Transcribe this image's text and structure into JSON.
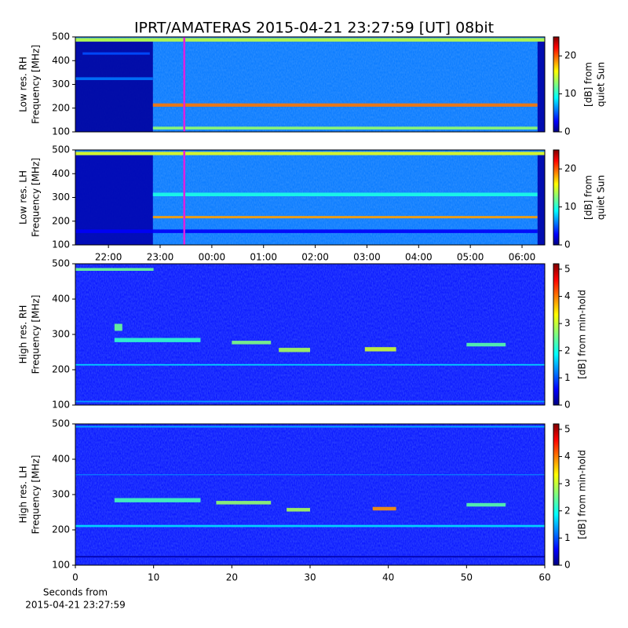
{
  "chart_data": {
    "type": "heatmap",
    "title": "IPRT/AMATERAS 2015-04-21 23:27:59 [UT]   08bit",
    "cursor": {
      "value": 23.4664,
      "color": "#e020e0"
    },
    "panels": [
      {
        "ylabel": [
          "Low res. RH",
          "Frequency [MHz]"
        ],
        "xlim": [
          21.36,
          30.44
        ],
        "ylim": [
          100,
          500
        ],
        "yticks": [
          100,
          200,
          300,
          400,
          500
        ],
        "clim": [
          0,
          25
        ],
        "cticks": [
          0,
          10,
          20
        ],
        "clabel": [
          "[dB] from",
          "quiet Sun"
        ],
        "background": 6,
        "features": [
          {
            "x": [
              21.36,
              22.86
            ],
            "y": [
              100,
              480
            ],
            "value": 0.8
          },
          {
            "x": [
              21.36,
              30.44
            ],
            "y": [
              480,
              495
            ],
            "value": 14
          },
          {
            "x": [
              22.86,
              30.3
            ],
            "y": [
              206,
              220
            ],
            "value": 19
          },
          {
            "x": [
              22.86,
              30.3
            ],
            "y": [
              110,
              122
            ],
            "value": 13
          },
          {
            "x": [
              21.5,
              22.8
            ],
            "y": [
              425,
              435
            ],
            "value": 5
          },
          {
            "x": [
              21.36,
              22.86
            ],
            "y": [
              318,
              330
            ],
            "value": 6
          },
          {
            "x": [
              30.3,
              30.44
            ],
            "y": [
              100,
              480
            ],
            "value": 1
          }
        ]
      },
      {
        "ylabel": [
          "Low res. LH",
          "Frequency [MHz]"
        ],
        "xlim": [
          21.36,
          30.44
        ],
        "ylim": [
          100,
          500
        ],
        "yticks": [
          100,
          200,
          300,
          400,
          500
        ],
        "xticks": [
          {
            "value": 22,
            "label": "22:00"
          },
          {
            "value": 23,
            "label": "23:00"
          },
          {
            "value": 24,
            "label": "00:00"
          },
          {
            "value": 25,
            "label": "01:00"
          },
          {
            "value": 26,
            "label": "02:00"
          },
          {
            "value": 27,
            "label": "03:00"
          },
          {
            "value": 28,
            "label": "04:00"
          },
          {
            "value": 29,
            "label": "05:00"
          },
          {
            "value": 30,
            "label": "06:00"
          }
        ],
        "clim": [
          0,
          25
        ],
        "cticks": [
          0,
          10,
          20
        ],
        "clabel": [
          "[dB] from",
          "quiet Sun"
        ],
        "background": 6,
        "features": [
          {
            "x": [
              21.36,
              22.86
            ],
            "y": [
              100,
              478
            ],
            "value": 1.2
          },
          {
            "x": [
              21.36,
              30.44
            ],
            "y": [
              478,
              492
            ],
            "value": 15
          },
          {
            "x": [
              22.86,
              30.3
            ],
            "y": [
              212,
              222
            ],
            "value": 18
          },
          {
            "x": [
              22.86,
              30.3
            ],
            "y": [
              305,
              320
            ],
            "value": 10
          },
          {
            "x": [
              21.36,
              30.3
            ],
            "y": [
              150,
              165
            ],
            "value": 3
          },
          {
            "x": [
              30.3,
              30.44
            ],
            "y": [
              100,
              478
            ],
            "value": 1
          }
        ]
      },
      {
        "ylabel": [
          "High res. RH",
          "Frequency [MHz]"
        ],
        "xlim": [
          0,
          60
        ],
        "ylim": [
          100,
          500
        ],
        "yticks": [
          100,
          200,
          300,
          400,
          500
        ],
        "clim": [
          0,
          5.2
        ],
        "cticks": [
          0,
          1,
          2,
          3,
          4,
          5
        ],
        "clabel": [
          "[dB] from min-hold"
        ],
        "background": 0.7,
        "features": [
          {
            "x": [
              0,
              10
            ],
            "y": [
              480,
              488
            ],
            "value": 2.5
          },
          {
            "x": [
              0,
              60
            ],
            "y": [
              212,
              216
            ],
            "value": 1.8
          },
          {
            "x": [
              0,
              60
            ],
            "y": [
              108,
              112
            ],
            "value": 1.5
          },
          {
            "x": [
              5,
              16
            ],
            "y": [
              278,
              290
            ],
            "value": 2.2
          },
          {
            "x": [
              20,
              25
            ],
            "y": [
              272,
              282
            ],
            "value": 2.6
          },
          {
            "x": [
              26,
              30
            ],
            "y": [
              250,
              262
            ],
            "value": 2.8
          },
          {
            "x": [
              37,
              41
            ],
            "y": [
              252,
              264
            ],
            "value": 3
          },
          {
            "x": [
              50,
              55
            ],
            "y": [
              266,
              276
            ],
            "value": 2.4
          },
          {
            "x": [
              5,
              6
            ],
            "y": [
              310,
              330
            ],
            "value": 2.5
          }
        ]
      },
      {
        "ylabel": [
          "High res. LH",
          "Frequency [MHz]"
        ],
        "xlim": [
          0,
          60
        ],
        "ylim": [
          100,
          500
        ],
        "yticks": [
          100,
          200,
          300,
          400,
          500
        ],
        "xticks": [
          0,
          10,
          20,
          30,
          40,
          50,
          60
        ],
        "xlabel": [
          "Seconds from",
          "2015-04-21 23:27:59"
        ],
        "clim": [
          0,
          5.2
        ],
        "cticks": [
          0,
          1,
          2,
          3,
          4,
          5
        ],
        "clabel": [
          "[dB] from min-hold"
        ],
        "background": 0.7,
        "features": [
          {
            "x": [
              0,
              60
            ],
            "y": [
              490,
              494
            ],
            "value": 1.6
          },
          {
            "x": [
              0,
              60
            ],
            "y": [
              355,
              357
            ],
            "value": 1.5
          },
          {
            "x": [
              0,
              60
            ],
            "y": [
              208,
              214
            ],
            "value": 1.8
          },
          {
            "x": [
              0,
              60
            ],
            "y": [
              122,
              126
            ],
            "value": 0.2
          },
          {
            "x": [
              5,
              16
            ],
            "y": [
              278,
              290
            ],
            "value": 2.3
          },
          {
            "x": [
              18,
              25
            ],
            "y": [
              272,
              282
            ],
            "value": 2.7
          },
          {
            "x": [
              27,
              30
            ],
            "y": [
              252,
              262
            ],
            "value": 2.8
          },
          {
            "x": [
              38,
              41
            ],
            "y": [
              255,
              265
            ],
            "value": 3.8
          },
          {
            "x": [
              50,
              55
            ],
            "y": [
              266,
              276
            ],
            "value": 2.4
          }
        ]
      }
    ]
  }
}
